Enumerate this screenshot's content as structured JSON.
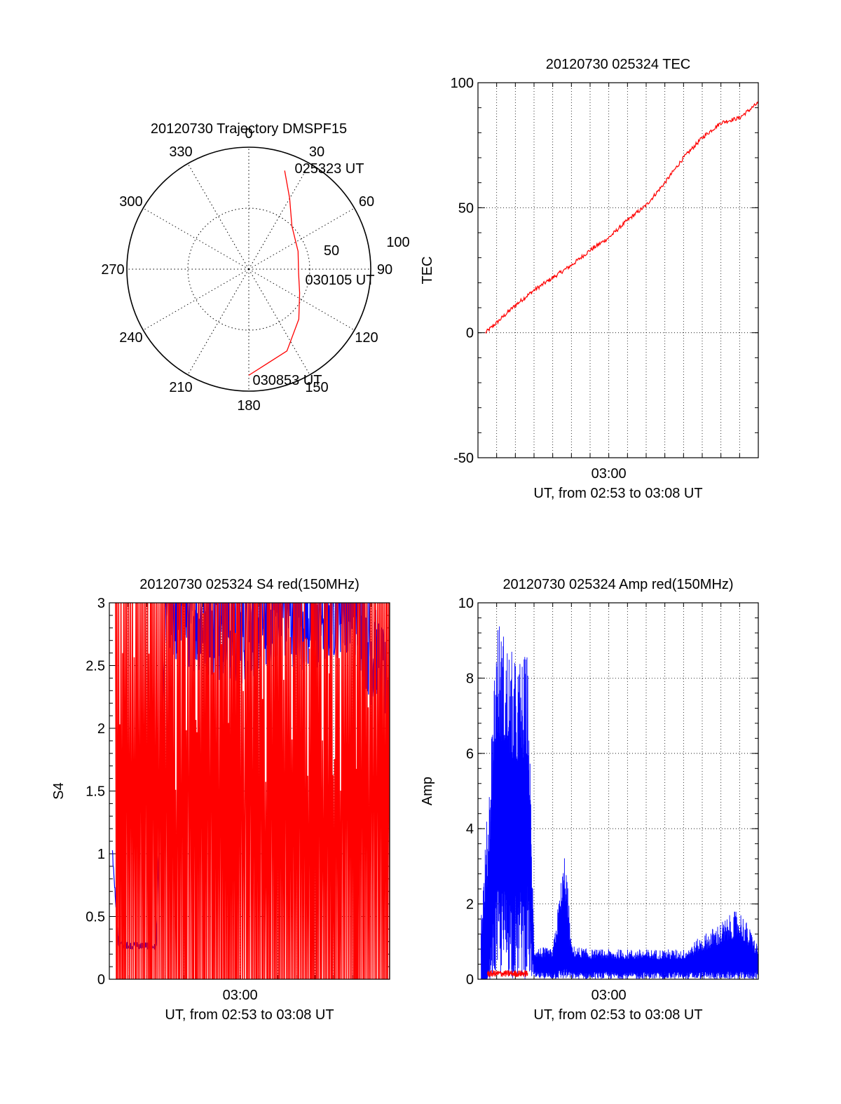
{
  "chart_data": [
    {
      "id": "trajectory",
      "type": "polar",
      "title": "20120730 Trajectory DMSPF15",
      "azimuth_labels": [
        "0",
        "30",
        "60",
        "90",
        "120",
        "150",
        "180",
        "210",
        "240",
        "270",
        "300",
        "330"
      ],
      "radial_labels": [
        "50",
        "100"
      ],
      "rlim": [
        0,
        100
      ],
      "grid": true,
      "series": [
        {
          "color": "#ff0000",
          "points": [
            {
              "az": 20,
              "r": 86
            },
            {
              "az": 30,
              "r": 67
            },
            {
              "az": 45,
              "r": 50
            },
            {
              "az": 70,
              "r": 43
            },
            {
              "az": 95,
              "r": 41
            },
            {
              "az": 115,
              "r": 46
            },
            {
              "az": 135,
              "r": 58
            },
            {
              "az": 155,
              "r": 74
            },
            {
              "az": 180,
              "r": 87
            }
          ]
        }
      ],
      "annotations": [
        {
          "text": "025323 UT",
          "az": 20,
          "r": 86
        },
        {
          "text": "030105 UT",
          "az": 98,
          "r": 41
        },
        {
          "text": "030853 UT",
          "az": 180,
          "r": 87
        }
      ]
    },
    {
      "id": "tec",
      "type": "line",
      "title": "20120730 025324 TEC",
      "ylabel": "TEC",
      "xlabel": "UT, from 02:53 to 03:08 UT",
      "xlim": [
        "02:53",
        "03:08"
      ],
      "ylim": [
        -50,
        100
      ],
      "yticks": [
        "100",
        "50",
        "0",
        "-50"
      ],
      "xticks": [
        {
          "label": "03:00",
          "at": "03:00"
        }
      ],
      "grid": true,
      "series": [
        {
          "color": "#ff0000",
          "x": [
            "02:53:24",
            "02:54:00",
            "02:55:00",
            "02:56:00",
            "02:57:00",
            "02:58:00",
            "02:59:00",
            "03:00:00",
            "03:01:00",
            "03:02:00",
            "03:03:00",
            "03:04:00",
            "03:05:00",
            "03:06:00",
            "03:07:00",
            "03:08:00"
          ],
          "y": [
            0,
            4,
            11,
            17,
            22,
            27,
            33,
            38,
            45,
            51,
            60,
            70,
            78,
            84,
            86,
            92
          ]
        }
      ]
    },
    {
      "id": "s4",
      "type": "line",
      "title": "20120730 025324 S4 red(150MHz)",
      "ylabel": "S4",
      "xlabel": "UT, from 02:53 to 03:08 UT",
      "xlim": [
        "02:53",
        "03:08"
      ],
      "ylim": [
        0,
        3
      ],
      "yticks": [
        "3",
        "2.5",
        "2",
        "1.5",
        "1",
        "0.5",
        "0"
      ],
      "xticks": [
        {
          "label": "03:00",
          "at": "03:00"
        }
      ],
      "grid": true,
      "series": [
        {
          "color": "#ff0000",
          "description_points": "rapidly oscillating between 0 and 3 across full interval",
          "x": [
            "02:53:20",
            "02:55:00",
            "02:57:00",
            "02:59:00",
            "03:01:00",
            "03:03:00",
            "03:05:00",
            "03:07:00",
            "03:08:00"
          ],
          "y": [
            3,
            0,
            3,
            0,
            3,
            0,
            3,
            0,
            3
          ]
        },
        {
          "color": "#0000ff",
          "x": [
            "02:53:10",
            "02:53:30",
            "02:54:00",
            "02:55:00",
            "02:55:30",
            "02:56:00",
            "02:58:00",
            "03:00:00",
            "03:02:00",
            "03:04:00",
            "03:06:00",
            "03:08:00"
          ],
          "y": [
            1.0,
            0.28,
            0.27,
            0.27,
            0.25,
            2.8,
            2.7,
            2.6,
            2.8,
            2.7,
            2.9,
            2.0
          ]
        }
      ]
    },
    {
      "id": "amp",
      "type": "line",
      "title": "20120730 025324 Amp red(150MHz)",
      "ylabel": "Amp",
      "xlabel": "UT, from 02:53 to 03:08 UT",
      "xlim": [
        "02:53",
        "03:08"
      ],
      "ylim": [
        0,
        10
      ],
      "yticks": [
        "10",
        "8",
        "6",
        "4",
        "2",
        "0"
      ],
      "xticks": [
        {
          "label": "03:00",
          "at": "03:00"
        }
      ],
      "grid": true,
      "series": [
        {
          "color": "#0000ff",
          "x": [
            "02:53:10",
            "02:53:30",
            "02:54:00",
            "02:55:00",
            "02:55:40",
            "02:56:00",
            "02:57:00",
            "02:57:40",
            "02:58:00",
            "02:59:00",
            "03:01:00",
            "03:04:00",
            "03:07:00",
            "03:08:00"
          ],
          "y_min": [
            0,
            0,
            2.5,
            2.3,
            2.5,
            0.2,
            0.2,
            0.3,
            0.2,
            0.2,
            0.2,
            0.2,
            0.2,
            0.2
          ],
          "y_max": [
            1.8,
            4.5,
            9.8,
            8.5,
            8.7,
            0.9,
            0.8,
            3.6,
            0.9,
            0.8,
            0.8,
            0.8,
            1.9,
            0.9
          ]
        },
        {
          "color": "#ff0000",
          "x": [
            "02:53:30",
            "02:55:40"
          ],
          "y": [
            0.2,
            0.2
          ]
        }
      ]
    }
  ]
}
